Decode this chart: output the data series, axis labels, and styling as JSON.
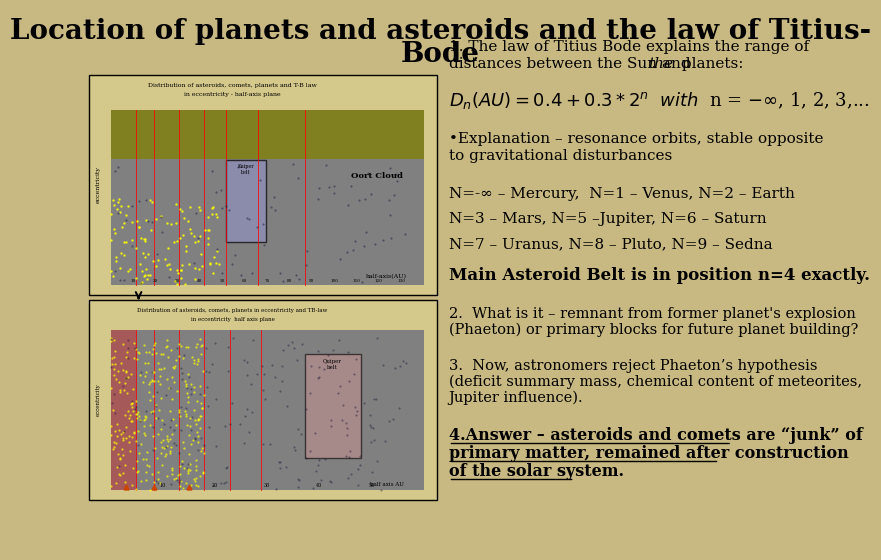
{
  "title": "Location of planets and asteroids and the law of Titius-\nBode",
  "background_color": "#c8b882",
  "title_fontsize": 20,
  "title_color": "#000000",
  "text_color": "#000000",
  "left_panel_placeholder": true,
  "right_text_blocks": [
    {
      "text": "1. The law of Titius Bode explains the range of\ndistances between the Sun and ",
      "style": "normal",
      "fontsize": 11.5
    }
  ],
  "formula": "$D_n(AU) = 0.4 + 0.3*2^n$  $\\mathit{with}$  n = $-\\infty$, 1, 2, 3,...",
  "bullet1": "•Explanation – resonance orbits, stable opposite\nto gravitational disturbances",
  "line1": "N=-∞ – Mercury,  N=1 – Venus, N=2 – Earth",
  "line2": "N=3 – Mars, N=5 –Jupiter, N=6 – Saturn",
  "line3": "N=7 – Uranus, N=8 – Pluto, N=9 – Sedna",
  "bold_line": "Main Asteroid Belt is in position n=4 exactly.",
  "para2": "2.  What is it – remnant from former planet's explosion\n(Phaeton) or primary blocks for future planet building?",
  "para3": "3.  Now, astronomers reject Phaeton's hypothesis\n(deficit summary mass, chemical content of meteorites,\nJupiter influence).",
  "para4_bold_underline": "4.Answer – asteroids and comets are “junk” of\nprimary matter, remained after construction\nof the solar system.",
  "img_placeholder_color": "#d0c898",
  "chart_border_color": "#000000",
  "font_family": "serif"
}
